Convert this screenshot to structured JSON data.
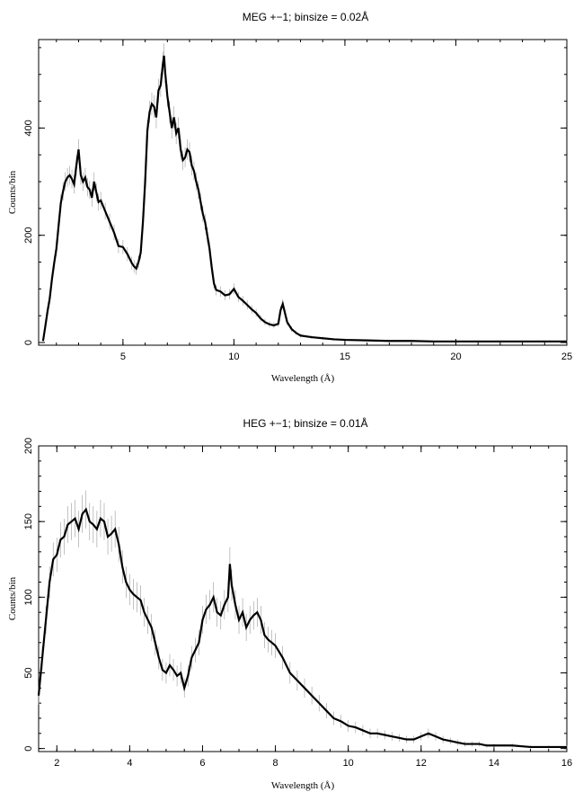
{
  "chart_data": [
    {
      "type": "line",
      "title": "MEG +−1; binsize = 0.02Å",
      "xlabel": "Wavelength (Å)",
      "ylabel": "Counts/bin",
      "xlim": [
        1.2,
        25
      ],
      "ylim": [
        -5,
        565
      ],
      "xticks": [
        5,
        10,
        15,
        20,
        25
      ],
      "yticks": [
        0,
        200,
        400
      ],
      "x_minor_step": 1,
      "y_minor_step": 50,
      "grid": false,
      "line_color": "#000000",
      "errorbar_color": "#9a9a9a",
      "series": [
        {
          "x": [
            1.4,
            1.5,
            1.6,
            1.7,
            1.8,
            1.9,
            2.0,
            2.1,
            2.2,
            2.3,
            2.4,
            2.5,
            2.6,
            2.7,
            2.8,
            2.9,
            3.0,
            3.1,
            3.2,
            3.3,
            3.4,
            3.5,
            3.6,
            3.7,
            3.8,
            3.9,
            4.0,
            4.2,
            4.4,
            4.6,
            4.8,
            5.0,
            5.2,
            5.4,
            5.5,
            5.6,
            5.7,
            5.8,
            5.9,
            6.0,
            6.1,
            6.2,
            6.3,
            6.4,
            6.5,
            6.6,
            6.7,
            6.8,
            6.85,
            6.9,
            7.0,
            7.1,
            7.2,
            7.3,
            7.4,
            7.5,
            7.6,
            7.7,
            7.8,
            7.9,
            8.0,
            8.1,
            8.2,
            8.3,
            8.4,
            8.5,
            8.6,
            8.7,
            8.8,
            8.9,
            9.0,
            9.1,
            9.2,
            9.4,
            9.6,
            9.8,
            10.0,
            10.2,
            10.4,
            10.6,
            10.8,
            11.0,
            11.2,
            11.4,
            11.6,
            11.8,
            12.0,
            12.1,
            12.2,
            12.3,
            12.4,
            12.6,
            12.8,
            13.0,
            13.5,
            14.0,
            14.5,
            15.0,
            16.0,
            17.0,
            18.0,
            19.0,
            20.0,
            21.0,
            22.0,
            23.0,
            24.0,
            25.0
          ],
          "y": [
            3,
            30,
            58,
            82,
            118,
            148,
            175,
            218,
            260,
            282,
            300,
            308,
            312,
            305,
            295,
            330,
            360,
            312,
            300,
            308,
            290,
            285,
            270,
            300,
            280,
            262,
            265,
            245,
            225,
            205,
            180,
            178,
            165,
            148,
            142,
            138,
            150,
            168,
            225,
            300,
            395,
            430,
            445,
            440,
            420,
            470,
            480,
            520,
            535,
            505,
            460,
            430,
            400,
            420,
            390,
            400,
            360,
            340,
            345,
            360,
            355,
            330,
            320,
            300,
            285,
            262,
            240,
            225,
            200,
            175,
            140,
            110,
            98,
            95,
            88,
            90,
            100,
            85,
            78,
            70,
            62,
            55,
            45,
            38,
            34,
            32,
            35,
            60,
            72,
            55,
            38,
            25,
            18,
            13,
            10,
            8,
            6,
            5,
            4,
            3,
            3,
            2,
            2,
            2,
            2,
            2,
            2,
            2
          ]
        }
      ]
    },
    {
      "type": "line",
      "title": "HEG +−1; binsize = 0.01Å",
      "xlabel": "Wavelength (Å)",
      "ylabel": "Counts/bin",
      "xlim": [
        1.5,
        16
      ],
      "ylim": [
        -2,
        200
      ],
      "xticks": [
        2,
        4,
        6,
        8,
        10,
        12,
        14,
        16
      ],
      "yticks": [
        0,
        50,
        100,
        150,
        200
      ],
      "x_minor_step": 0.5,
      "y_minor_step": 10,
      "grid": false,
      "line_color": "#000000",
      "errorbar_color": "#9a9a9a",
      "series": [
        {
          "x": [
            1.5,
            1.6,
            1.7,
            1.8,
            1.9,
            2.0,
            2.1,
            2.2,
            2.3,
            2.4,
            2.5,
            2.6,
            2.7,
            2.8,
            2.9,
            3.0,
            3.1,
            3.2,
            3.3,
            3.4,
            3.5,
            3.6,
            3.7,
            3.8,
            3.9,
            4.0,
            4.1,
            4.2,
            4.3,
            4.4,
            4.5,
            4.6,
            4.7,
            4.8,
            4.9,
            5.0,
            5.1,
            5.2,
            5.3,
            5.4,
            5.5,
            5.6,
            5.7,
            5.8,
            5.9,
            6.0,
            6.1,
            6.2,
            6.3,
            6.4,
            6.5,
            6.6,
            6.7,
            6.75,
            6.8,
            6.9,
            7.0,
            7.1,
            7.2,
            7.3,
            7.4,
            7.5,
            7.6,
            7.7,
            7.8,
            7.9,
            8.0,
            8.2,
            8.4,
            8.6,
            8.8,
            9.0,
            9.2,
            9.4,
            9.6,
            9.8,
            10.0,
            10.2,
            10.4,
            10.6,
            10.8,
            11.0,
            11.2,
            11.4,
            11.6,
            11.8,
            12.0,
            12.2,
            12.4,
            12.6,
            12.8,
            13.0,
            13.2,
            13.4,
            13.6,
            13.8,
            14.0,
            14.5,
            15.0,
            15.5,
            16.0
          ],
          "y": [
            35,
            60,
            85,
            110,
            125,
            128,
            138,
            140,
            148,
            150,
            152,
            145,
            155,
            158,
            150,
            148,
            145,
            152,
            150,
            140,
            142,
            145,
            135,
            120,
            110,
            105,
            102,
            100,
            98,
            90,
            85,
            80,
            70,
            60,
            52,
            50,
            55,
            52,
            48,
            50,
            40,
            48,
            60,
            65,
            70,
            85,
            92,
            95,
            100,
            90,
            88,
            95,
            100,
            122,
            108,
            95,
            85,
            90,
            80,
            85,
            88,
            90,
            85,
            75,
            72,
            70,
            68,
            60,
            50,
            45,
            40,
            35,
            30,
            25,
            20,
            18,
            15,
            14,
            12,
            10,
            10,
            9,
            8,
            7,
            6,
            6,
            8,
            10,
            8,
            6,
            5,
            4,
            3,
            3,
            3,
            2,
            2,
            2,
            1,
            1,
            1
          ]
        }
      ]
    }
  ]
}
